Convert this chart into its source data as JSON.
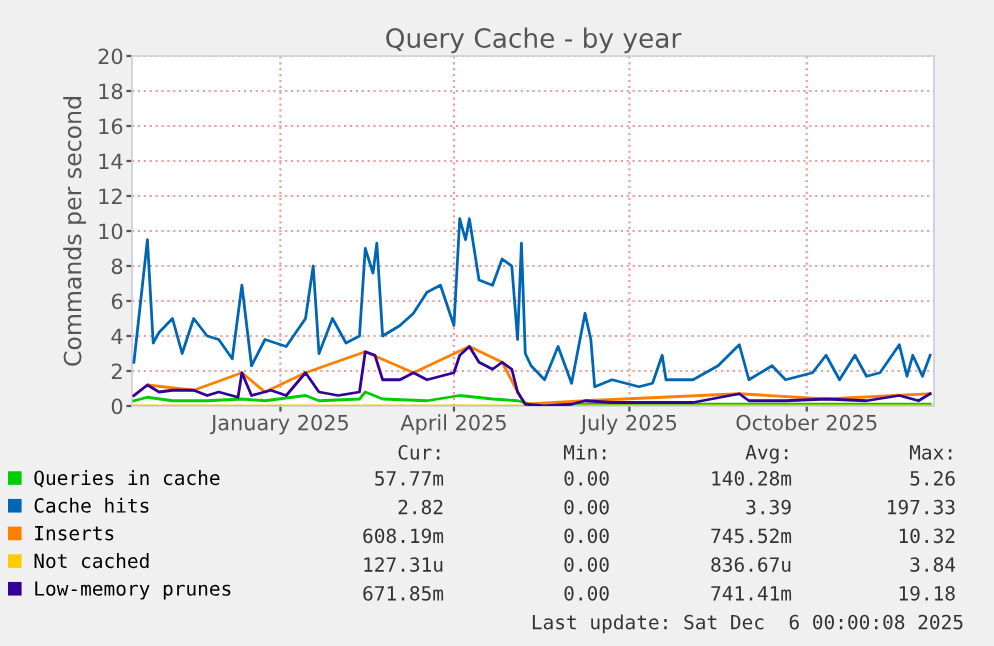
{
  "chart_data": {
    "type": "line",
    "title": "Query Cache - by year",
    "ylabel": "Commands per second",
    "xlim": [
      "2024-10-16",
      "2025-12-06"
    ],
    "xticks": [
      {
        "value": "2025-01-01",
        "label": "January 2025"
      },
      {
        "value": "2025-04-01",
        "label": "April 2025"
      },
      {
        "value": "2025-07-01",
        "label": "July 2025"
      },
      {
        "value": "2025-10-01",
        "label": "October 2025"
      }
    ],
    "ylim": [
      0,
      20
    ],
    "yticks": [
      0,
      2,
      4,
      6,
      8,
      10,
      12,
      14,
      16,
      18,
      20
    ],
    "grid": true,
    "legend": "bottom",
    "marker": "none",
    "line_style": "solid",
    "series": [
      {
        "name": "Queries in cache",
        "color": "#00cc00",
        "x": [
          "2024-10-17",
          "2024-10-24",
          "2024-11-06",
          "2024-11-24",
          "2024-12-12",
          "2024-12-24",
          "2025-01-14",
          "2025-01-21",
          "2025-02-11",
          "2025-02-14",
          "2025-02-23",
          "2025-03-18",
          "2025-04-04",
          "2025-04-21",
          "2025-05-04",
          "2025-05-11",
          "2025-06-13",
          "2025-07-20",
          "2025-08-27",
          "2025-09-20",
          "2025-10-18",
          "2025-11-18",
          "2025-12-04"
        ],
        "values": [
          0.3,
          0.5,
          0.3,
          0.3,
          0.4,
          0.3,
          0.6,
          0.3,
          0.4,
          0.8,
          0.4,
          0.3,
          0.6,
          0.4,
          0.3,
          0.1,
          0.1,
          0.1,
          0.1,
          0.1,
          0.1,
          0.1,
          0.1
        ]
      },
      {
        "name": "Cache hits",
        "color": "#0066b3",
        "x": [
          "2024-10-17",
          "2024-10-20",
          "2024-10-24",
          "2024-10-27",
          "2024-10-30",
          "2024-11-06",
          "2024-11-11",
          "2024-11-17",
          "2024-11-24",
          "2024-11-30",
          "2024-12-07",
          "2024-12-12",
          "2024-12-17",
          "2024-12-24",
          "2025-01-04",
          "2025-01-14",
          "2025-01-18",
          "2025-01-21",
          "2025-01-28",
          "2025-02-04",
          "2025-02-11",
          "2025-02-14",
          "2025-02-18",
          "2025-02-20",
          "2025-02-23",
          "2025-03-04",
          "2025-03-11",
          "2025-03-18",
          "2025-03-25",
          "2025-04-01",
          "2025-04-04",
          "2025-04-07",
          "2025-04-09",
          "2025-04-14",
          "2025-04-21",
          "2025-04-26",
          "2025-05-01",
          "2025-05-04",
          "2025-05-06",
          "2025-05-08",
          "2025-05-11",
          "2025-05-18",
          "2025-05-25",
          "2025-06-01",
          "2025-06-08",
          "2025-06-11",
          "2025-06-13",
          "2025-06-22",
          "2025-07-06",
          "2025-07-13",
          "2025-07-18",
          "2025-07-20",
          "2025-08-03",
          "2025-08-16",
          "2025-08-27",
          "2025-09-01",
          "2025-09-13",
          "2025-09-20",
          "2025-10-04",
          "2025-10-11",
          "2025-10-18",
          "2025-10-26",
          "2025-11-01",
          "2025-11-08",
          "2025-11-18",
          "2025-11-22",
          "2025-11-25",
          "2025-11-30",
          "2025-12-04"
        ],
        "values": [
          2.5,
          5.5,
          9.5,
          3.6,
          4.2,
          5.0,
          3.0,
          5.0,
          4.0,
          3.8,
          2.7,
          6.9,
          2.3,
          3.8,
          3.4,
          5.0,
          8.0,
          3.0,
          5.0,
          3.6,
          4.0,
          9.0,
          7.6,
          9.3,
          4.0,
          4.6,
          5.3,
          6.5,
          6.9,
          4.6,
          10.7,
          9.5,
          10.7,
          7.2,
          6.9,
          8.4,
          8.0,
          3.8,
          9.3,
          3.0,
          2.3,
          1.5,
          3.4,
          1.3,
          5.3,
          3.8,
          1.1,
          1.5,
          1.1,
          1.3,
          2.9,
          1.5,
          1.5,
          2.3,
          3.5,
          1.5,
          2.3,
          1.5,
          1.9,
          2.9,
          1.5,
          2.9,
          1.7,
          1.9,
          3.5,
          1.7,
          2.9,
          1.7,
          2.9
        ]
      },
      {
        "name": "Inserts",
        "color": "#ff8000",
        "x": [
          "2024-10-17",
          "2024-10-24",
          "2024-11-17",
          "2024-12-12",
          "2024-12-24",
          "2025-01-14",
          "2025-02-14",
          "2025-03-11",
          "2025-04-09",
          "2025-04-26",
          "2025-05-04",
          "2025-05-08",
          "2025-06-08",
          "2025-08-27",
          "2025-10-11",
          "2025-12-04"
        ],
        "values": [
          0.6,
          1.2,
          0.9,
          1.9,
          0.8,
          1.9,
          3.1,
          1.9,
          3.4,
          2.5,
          0.8,
          0.1,
          0.3,
          0.7,
          0.4,
          0.7
        ]
      },
      {
        "name": "Not cached",
        "color": "#ffcc00",
        "x": [
          "2024-10-17",
          "2025-12-04"
        ],
        "values": [
          0,
          0
        ]
      },
      {
        "name": "Low-memory prunes",
        "color": "#330099",
        "x": [
          "2024-10-17",
          "2024-10-24",
          "2024-10-30",
          "2024-11-06",
          "2024-11-17",
          "2024-11-24",
          "2024-11-30",
          "2024-12-10",
          "2024-12-12",
          "2024-12-17",
          "2024-12-27",
          "2025-01-04",
          "2025-01-14",
          "2025-01-21",
          "2025-01-31",
          "2025-02-11",
          "2025-02-14",
          "2025-02-19",
          "2025-02-23",
          "2025-03-04",
          "2025-03-11",
          "2025-03-18",
          "2025-03-25",
          "2025-04-01",
          "2025-04-04",
          "2025-04-09",
          "2025-04-14",
          "2025-04-21",
          "2025-04-26",
          "2025-05-01",
          "2025-05-04",
          "2025-05-08",
          "2025-05-18",
          "2025-06-01",
          "2025-06-08",
          "2025-06-22",
          "2025-07-13",
          "2025-08-03",
          "2025-08-27",
          "2025-09-01",
          "2025-09-20",
          "2025-10-11",
          "2025-11-01",
          "2025-11-18",
          "2025-11-28",
          "2025-12-04"
        ],
        "values": [
          0.6,
          1.2,
          0.8,
          0.9,
          0.9,
          0.6,
          0.8,
          0.5,
          1.9,
          0.6,
          0.9,
          0.6,
          1.9,
          0.8,
          0.6,
          0.8,
          3.1,
          2.9,
          1.5,
          1.5,
          1.9,
          1.5,
          1.7,
          1.9,
          2.9,
          3.4,
          2.5,
          2.1,
          2.5,
          2.1,
          0.8,
          0.1,
          0,
          0.1,
          0.3,
          0.2,
          0.2,
          0.2,
          0.7,
          0.3,
          0.3,
          0.4,
          0.3,
          0.6,
          0.3,
          0.7
        ]
      }
    ],
    "annotations": [
      "Cur:",
      "Min:",
      "Avg:",
      "Max:",
      "57.77m",
      "0.00",
      "140.28m",
      "5.26",
      "2.82",
      "0.00",
      "3.39",
      "197.33",
      "608.19m",
      "0.00",
      "745.52m",
      "10.32",
      "127.31u",
      "0.00",
      "836.67u",
      "3.84",
      "671.85m",
      "0.00",
      "741.41m",
      "19.18",
      "Last update: Sat Dec  6 00:00:08 2025"
    ]
  }
}
